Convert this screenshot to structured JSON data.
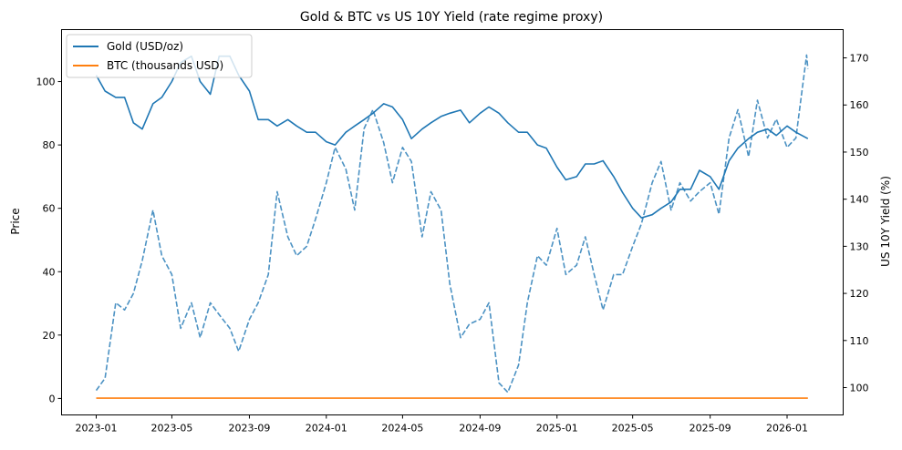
{
  "chart_data": {
    "type": "line",
    "title": "Gold & BTC vs US 10Y Yield (rate regime proxy)",
    "xlabel": "",
    "ylabel": "Price",
    "ylabel_right": "US 10Y Yield (%)",
    "xlim": [
      "2022-11-07",
      "2026-03-31"
    ],
    "ylim": [
      -5.2,
      116.4
    ],
    "ylim_right": [
      94.2,
      176
    ],
    "x_ticks": [
      "2023-01",
      "2023-05",
      "2023-09",
      "2024-01",
      "2024-05",
      "2024-09",
      "2025-01",
      "2025-05",
      "2025-09",
      "2026-01"
    ],
    "y_ticks": [
      0,
      20,
      40,
      60,
      80,
      100
    ],
    "y_ticks_right": [
      100,
      110,
      120,
      130,
      140,
      150,
      160,
      170
    ],
    "grid": false,
    "legend_position": "top-left",
    "legend": [
      {
        "label": "Gold (USD/oz)",
        "color": "#1f77b4"
      },
      {
        "label": "BTC (thousands USD)",
        "color": "#ff7f0e"
      }
    ],
    "series": [
      {
        "name": "Gold (USD/oz)",
        "axis": "left",
        "color": "#1f77b4",
        "style": "solid",
        "points": [
          [
            "2023-01-01",
            102
          ],
          [
            "2023-01-15",
            97
          ],
          [
            "2023-02-01",
            95
          ],
          [
            "2023-02-15",
            95
          ],
          [
            "2023-03-01",
            87
          ],
          [
            "2023-03-15",
            85
          ],
          [
            "2023-04-01",
            93
          ],
          [
            "2023-04-15",
            95
          ],
          [
            "2023-05-01",
            100
          ],
          [
            "2023-05-15",
            106
          ],
          [
            "2023-06-01",
            108
          ],
          [
            "2023-06-15",
            100
          ],
          [
            "2023-07-01",
            96
          ],
          [
            "2023-07-15",
            108
          ],
          [
            "2023-08-01",
            108
          ],
          [
            "2023-08-15",
            102
          ],
          [
            "2023-09-01",
            97
          ],
          [
            "2023-09-15",
            88
          ],
          [
            "2023-10-01",
            88
          ],
          [
            "2023-10-15",
            86
          ],
          [
            "2023-11-01",
            88
          ],
          [
            "2023-11-15",
            86
          ],
          [
            "2023-12-01",
            84
          ],
          [
            "2023-12-15",
            84
          ],
          [
            "2024-01-01",
            81
          ],
          [
            "2024-01-15",
            80
          ],
          [
            "2024-02-01",
            84
          ],
          [
            "2024-02-15",
            86
          ],
          [
            "2024-03-01",
            88
          ],
          [
            "2024-03-15",
            90
          ],
          [
            "2024-04-01",
            93
          ],
          [
            "2024-04-15",
            92
          ],
          [
            "2024-05-01",
            88
          ],
          [
            "2024-05-15",
            82
          ],
          [
            "2024-06-01",
            85
          ],
          [
            "2024-06-15",
            87
          ],
          [
            "2024-07-01",
            89
          ],
          [
            "2024-07-15",
            90
          ],
          [
            "2024-08-01",
            91
          ],
          [
            "2024-08-15",
            87
          ],
          [
            "2024-09-01",
            90
          ],
          [
            "2024-09-15",
            92
          ],
          [
            "2024-10-01",
            90
          ],
          [
            "2024-10-15",
            87
          ],
          [
            "2024-11-01",
            84
          ],
          [
            "2024-11-15",
            84
          ],
          [
            "2024-12-01",
            80
          ],
          [
            "2024-12-15",
            79
          ],
          [
            "2025-01-01",
            73
          ],
          [
            "2025-01-15",
            69
          ],
          [
            "2025-02-01",
            70
          ],
          [
            "2025-02-15",
            74
          ],
          [
            "2025-03-01",
            74
          ],
          [
            "2025-03-15",
            75
          ],
          [
            "2025-04-01",
            70
          ],
          [
            "2025-04-15",
            65
          ],
          [
            "2025-05-01",
            60
          ],
          [
            "2025-05-15",
            57
          ],
          [
            "2025-06-01",
            58
          ],
          [
            "2025-06-15",
            60
          ],
          [
            "2025-07-01",
            62
          ],
          [
            "2025-07-15",
            66
          ],
          [
            "2025-08-01",
            66
          ],
          [
            "2025-08-15",
            72
          ],
          [
            "2025-09-01",
            70
          ],
          [
            "2025-09-15",
            66
          ],
          [
            "2025-10-01",
            75
          ],
          [
            "2025-10-15",
            79
          ],
          [
            "2025-11-01",
            82
          ],
          [
            "2025-11-15",
            84
          ],
          [
            "2025-12-01",
            85
          ],
          [
            "2025-12-15",
            83
          ],
          [
            "2026-01-01",
            86
          ],
          [
            "2026-01-15",
            84
          ],
          [
            "2026-02-03",
            82
          ]
        ]
      },
      {
        "name": "BTC (thousands USD)",
        "axis": "left",
        "color": "#ff7f0e",
        "style": "solid",
        "points": [
          [
            "2023-01-01",
            0.1
          ],
          [
            "2026-02-03",
            0.1
          ]
        ]
      },
      {
        "axis": "right",
        "color": "#1f77b4",
        "style": "dashed",
        "points": [
          [
            "2023-01-01",
            99.4
          ],
          [
            "2023-01-15",
            102
          ],
          [
            "2023-02-01",
            118
          ],
          [
            "2023-02-15",
            116.5
          ],
          [
            "2023-03-01",
            120
          ],
          [
            "2023-03-15",
            127
          ],
          [
            "2023-04-01",
            137.7
          ],
          [
            "2023-04-15",
            128
          ],
          [
            "2023-05-01",
            124
          ],
          [
            "2023-05-15",
            112.6
          ],
          [
            "2023-06-01",
            118
          ],
          [
            "2023-06-15",
            110.6
          ],
          [
            "2023-07-01",
            118
          ],
          [
            "2023-07-15",
            115.5
          ],
          [
            "2023-08-01",
            112.6
          ],
          [
            "2023-08-15",
            107.7
          ],
          [
            "2023-09-01",
            114.5
          ],
          [
            "2023-09-15",
            118
          ],
          [
            "2023-10-01",
            124
          ],
          [
            "2023-10-15",
            141.6
          ],
          [
            "2023-11-01",
            132
          ],
          [
            "2023-11-15",
            128
          ],
          [
            "2023-12-01",
            130
          ],
          [
            "2023-12-15",
            135.8
          ],
          [
            "2024-01-01",
            143.5
          ],
          [
            "2024-01-15",
            151
          ],
          [
            "2024-02-01",
            146.4
          ],
          [
            "2024-02-15",
            137.7
          ],
          [
            "2024-03-01",
            155
          ],
          [
            "2024-03-15",
            159
          ],
          [
            "2024-04-01",
            152
          ],
          [
            "2024-04-15",
            143.5
          ],
          [
            "2024-05-01",
            151
          ],
          [
            "2024-05-15",
            148
          ],
          [
            "2024-06-01",
            132
          ],
          [
            "2024-06-15",
            141.6
          ],
          [
            "2024-07-01",
            137.7
          ],
          [
            "2024-07-15",
            122
          ],
          [
            "2024-08-01",
            110.6
          ],
          [
            "2024-08-15",
            113.5
          ],
          [
            "2024-09-01",
            114.5
          ],
          [
            "2024-09-15",
            118
          ],
          [
            "2024-10-01",
            101
          ],
          [
            "2024-10-15",
            99
          ],
          [
            "2024-11-01",
            104.8
          ],
          [
            "2024-11-15",
            118
          ],
          [
            "2024-12-01",
            128
          ],
          [
            "2024-12-15",
            126
          ],
          [
            "2025-01-01",
            133.8
          ],
          [
            "2025-01-15",
            124
          ],
          [
            "2025-02-01",
            126
          ],
          [
            "2025-02-15",
            132
          ],
          [
            "2025-03-01",
            124
          ],
          [
            "2025-03-15",
            116.5
          ],
          [
            "2025-04-01",
            124
          ],
          [
            "2025-04-15",
            124
          ],
          [
            "2025-05-01",
            130
          ],
          [
            "2025-05-15",
            134.8
          ],
          [
            "2025-06-01",
            143.5
          ],
          [
            "2025-06-15",
            148
          ],
          [
            "2025-07-01",
            137.7
          ],
          [
            "2025-07-15",
            143.5
          ],
          [
            "2025-08-01",
            139.6
          ],
          [
            "2025-08-15",
            141.6
          ],
          [
            "2025-09-01",
            143.5
          ],
          [
            "2025-09-15",
            136.8
          ],
          [
            "2025-10-01",
            153
          ],
          [
            "2025-10-15",
            159
          ],
          [
            "2025-11-01",
            149
          ],
          [
            "2025-11-15",
            161
          ],
          [
            "2025-12-01",
            153
          ],
          [
            "2025-12-15",
            157
          ],
          [
            "2026-01-01",
            151
          ],
          [
            "2026-01-15",
            153
          ],
          [
            "2026-02-01",
            170.6
          ],
          [
            "2026-02-03",
            167.7
          ]
        ]
      }
    ]
  }
}
